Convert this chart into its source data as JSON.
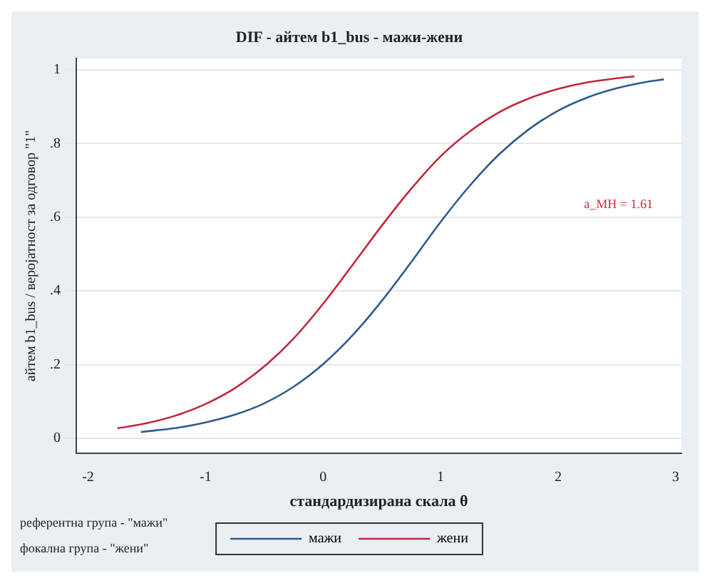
{
  "chart_data": {
    "type": "line",
    "title": "DIF - айтем b1_bus - мажи-жени",
    "xlabel": "стандардизирана скала θ",
    "ylabel": "айтем b1_bus / веројатност за одговор \"1\"",
    "annotations": [
      "a_MH = 1.61",
      "референтна група - \"мажи\"",
      "фокална група - \"жени\""
    ],
    "series": [
      {
        "name": "мажи",
        "color": "#2f5b8c",
        "x": [
          -1.55,
          -1.25,
          -1,
          -0.75,
          -0.5,
          -0.25,
          0,
          0.25,
          0.5,
          0.75,
          1,
          1.25,
          1.5,
          1.75,
          2,
          2.25,
          2.5,
          2.75,
          2.9
        ],
        "values": [
          0.017,
          0.028,
          0.043,
          0.064,
          0.095,
          0.14,
          0.201,
          0.279,
          0.373,
          0.478,
          0.587,
          0.686,
          0.771,
          0.838,
          0.889,
          0.925,
          0.95,
          0.967,
          0.974
        ]
      },
      {
        "name": "жени",
        "color": "#c0283a",
        "x": [
          -1.75,
          -1.5,
          -1.25,
          -1,
          -0.75,
          -0.5,
          -0.25,
          0,
          0.25,
          0.5,
          0.75,
          1,
          1.25,
          1.5,
          1.75,
          2,
          2.25,
          2.5,
          2.65
        ],
        "values": [
          0.027,
          0.041,
          0.062,
          0.093,
          0.136,
          0.195,
          0.271,
          0.365,
          0.47,
          0.577,
          0.677,
          0.765,
          0.833,
          0.885,
          0.922,
          0.948,
          0.966,
          0.977,
          0.982
        ]
      }
    ],
    "xlim": [
      -2.1,
      3.05
    ],
    "xticks": [
      -2,
      -1,
      0,
      1,
      2,
      3
    ],
    "ylim": [
      -0.04,
      1.03
    ],
    "yticks": [
      0,
      {
        "value": 0.2,
        "label": ".2"
      },
      {
        "value": 0.4,
        "label": ".4"
      },
      {
        "value": 0.6,
        "label": ".6"
      },
      {
        "value": 0.8,
        "label": ".8"
      },
      1
    ],
    "grid": "y",
    "legend": "bottom",
    "marker": "none",
    "line_style": "solid"
  }
}
